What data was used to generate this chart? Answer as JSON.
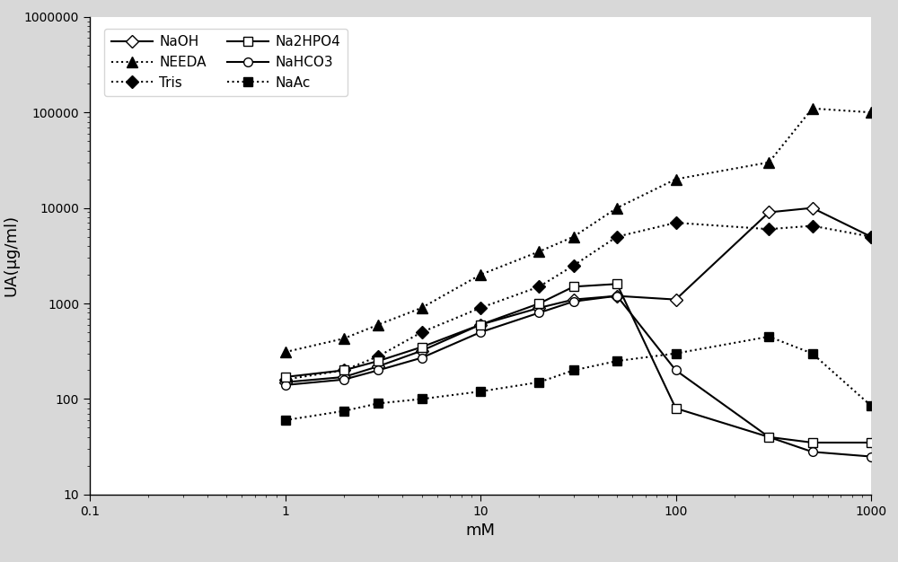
{
  "xlabel": "mM",
  "ylabel": "UA(μg/ml)",
  "xlim": [
    0.1,
    1000
  ],
  "ylim": [
    10,
    1000000
  ],
  "series": {
    "NaOH": {
      "x": [
        1,
        2,
        3,
        5,
        10,
        20,
        30,
        50,
        100,
        300,
        500,
        1000
      ],
      "y": [
        150,
        170,
        220,
        320,
        600,
        900,
        1100,
        1200,
        1100,
        9000,
        10000,
        5000
      ],
      "linestyle": "-",
      "marker": "D",
      "markerfacecolor": "white",
      "color": "black",
      "markersize": 7
    },
    "Tris": {
      "x": [
        1,
        2,
        3,
        5,
        10,
        20,
        30,
        50,
        100,
        300,
        500,
        1000
      ],
      "y": [
        160,
        200,
        280,
        500,
        900,
        1500,
        2500,
        5000,
        7000,
        6000,
        6500,
        5000
      ],
      "linestyle": ":",
      "marker": "D",
      "markerfacecolor": "black",
      "color": "black",
      "markersize": 7
    },
    "NaHCO3": {
      "x": [
        1,
        2,
        3,
        5,
        10,
        20,
        30,
        50,
        100,
        300,
        500,
        1000
      ],
      "y": [
        140,
        160,
        200,
        270,
        500,
        800,
        1050,
        1200,
        200,
        40,
        28,
        25
      ],
      "linestyle": "-",
      "marker": "o",
      "markerfacecolor": "white",
      "color": "black",
      "markersize": 7
    },
    "NEEDA": {
      "x": [
        1,
        2,
        3,
        5,
        10,
        20,
        30,
        50,
        100,
        300,
        500,
        1000
      ],
      "y": [
        310,
        430,
        600,
        900,
        2000,
        3500,
        5000,
        10000,
        20000,
        30000,
        110000,
        100000
      ],
      "linestyle": ":",
      "marker": "^",
      "markerfacecolor": "black",
      "color": "black",
      "markersize": 8
    },
    "Na2HPO4": {
      "x": [
        1,
        2,
        3,
        5,
        10,
        20,
        30,
        50,
        100,
        300,
        500,
        1000
      ],
      "y": [
        170,
        200,
        250,
        350,
        600,
        1000,
        1500,
        1600,
        80,
        40,
        35,
        35
      ],
      "linestyle": "-",
      "marker": "s",
      "markerfacecolor": "white",
      "color": "black",
      "markersize": 7
    },
    "NaAc": {
      "x": [
        1,
        2,
        3,
        5,
        10,
        20,
        30,
        50,
        100,
        300,
        500,
        1000
      ],
      "y": [
        60,
        75,
        90,
        100,
        120,
        150,
        200,
        250,
        300,
        450,
        300,
        85
      ],
      "linestyle": ":",
      "marker": "s",
      "markerfacecolor": "black",
      "color": "black",
      "markersize": 7
    }
  },
  "legend_labels": {
    "NaOH": "NaOH",
    "NEEDA": "NEEDA",
    "Tris": "Tris",
    "Na2HPO4": "Na2HPO4",
    "NaHCO3": "NaHCO3",
    "NaAc": "NaAc"
  },
  "figure_facecolor": "#d8d8d8",
  "plot_facecolor": "white"
}
